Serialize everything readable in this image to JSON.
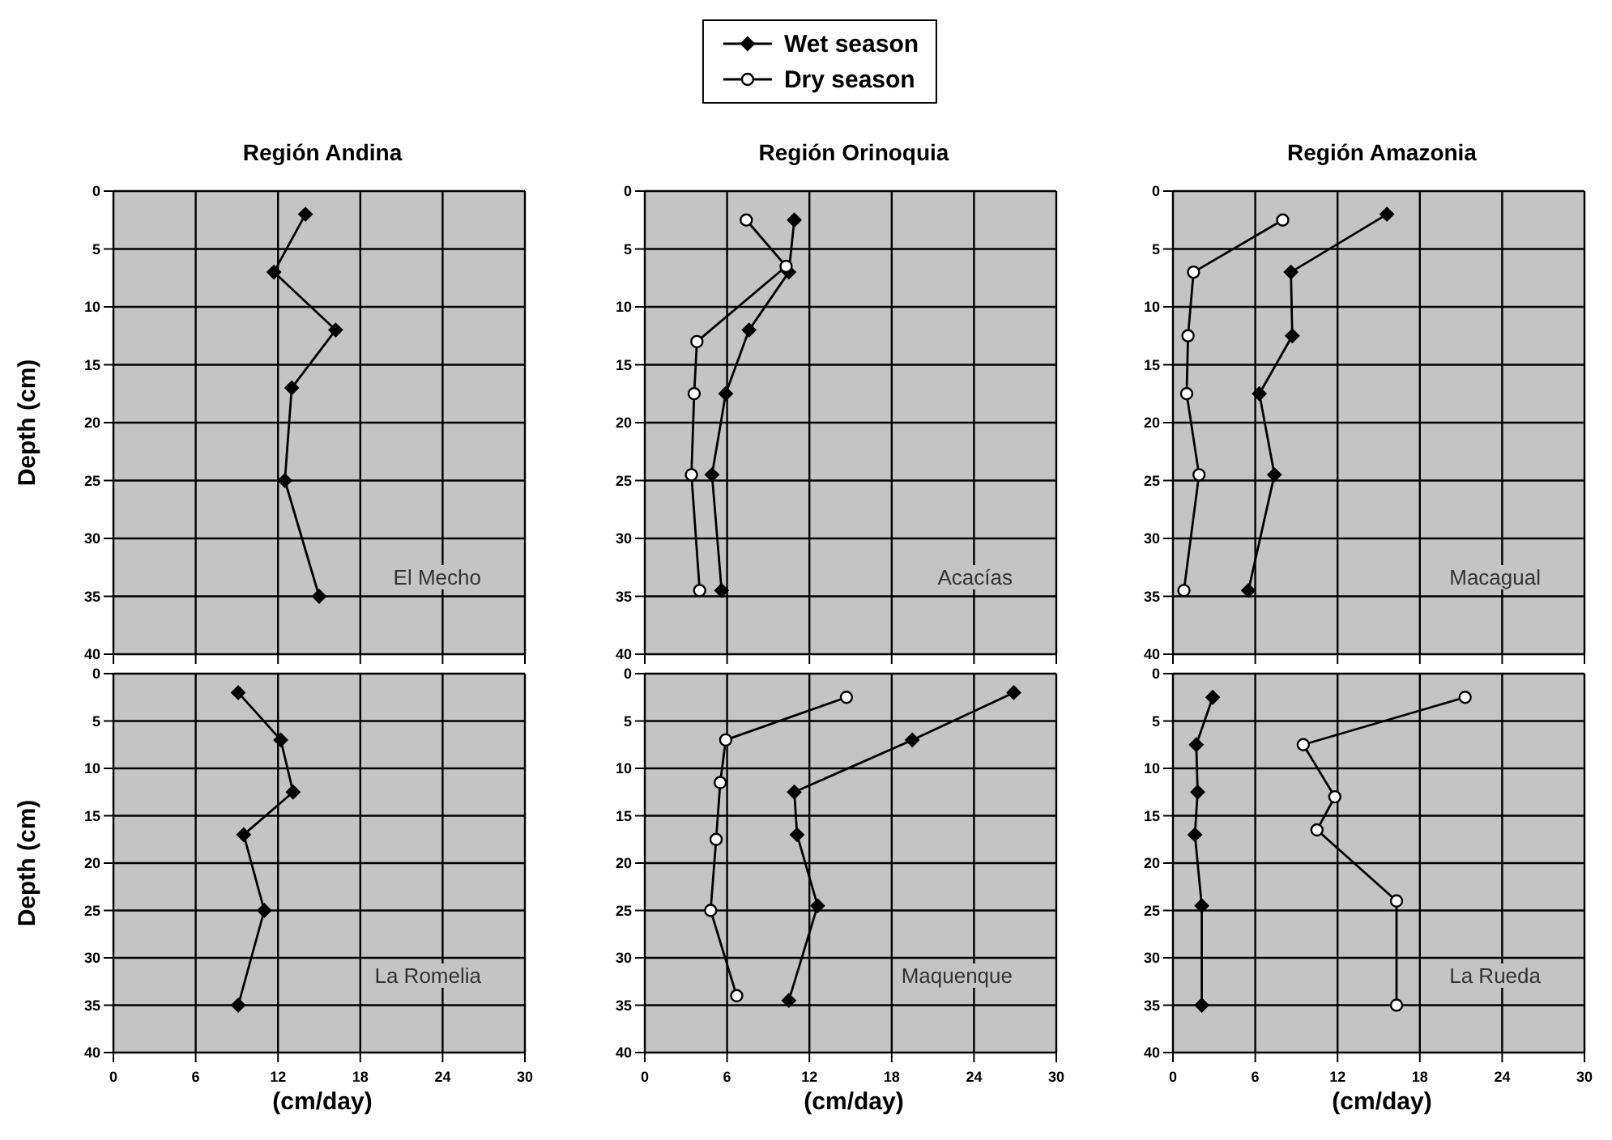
{
  "chart_data": [
    {
      "type": "line",
      "title": "Región Andina",
      "ylabel": "Depth (cm)",
      "annotations": [
        "El Mecho"
      ],
      "xlim": [
        0,
        30
      ],
      "xticks": [
        0,
        6,
        12,
        18,
        24,
        30
      ],
      "ylim": [
        40,
        0
      ],
      "yticks": [
        0,
        5,
        10,
        15,
        20,
        25,
        30,
        35,
        40
      ],
      "grid": true,
      "tick_labels": "y",
      "legend": false,
      "series": [
        {
          "color": "#000000",
          "marker": "diamond",
          "x": [
            14,
            11.7,
            16.2,
            13,
            12.5,
            15
          ],
          "values": [
            2,
            7,
            12,
            17,
            25,
            35
          ]
        }
      ]
    },
    {
      "type": "line",
      "title": "Región Orinoquia",
      "annotations": [
        "Acacías"
      ],
      "xlim": [
        0,
        30
      ],
      "xticks": [
        0,
        6,
        12,
        18,
        24,
        30
      ],
      "ylim": [
        40,
        0
      ],
      "yticks": [
        0,
        5,
        10,
        15,
        20,
        25,
        30,
        35,
        40
      ],
      "grid": true,
      "tick_labels": "y",
      "legend": "top",
      "series": [
        {
          "name": "Wet season",
          "color": "#000000",
          "marker": "diamond",
          "x": [
            10.9,
            10.5,
            7.6,
            5.9,
            4.9,
            5.6
          ],
          "values": [
            2.5,
            7,
            12,
            17.5,
            24.5,
            34.5
          ]
        },
        {
          "name": "Dry season",
          "color": "#000000",
          "marker": "circle",
          "x": [
            7.4,
            10.3,
            3.8,
            3.6,
            3.4,
            4
          ],
          "values": [
            2.5,
            6.5,
            13,
            17.5,
            24.5,
            34.5
          ]
        }
      ]
    },
    {
      "type": "line",
      "title": "Región Amazonia",
      "annotations": [
        "Macagual"
      ],
      "xlim": [
        0,
        30
      ],
      "xticks": [
        0,
        6,
        12,
        18,
        24,
        30
      ],
      "ylim": [
        40,
        0
      ],
      "yticks": [
        0,
        5,
        10,
        15,
        20,
        25,
        30,
        35,
        40
      ],
      "grid": true,
      "tick_labels": "y",
      "legend": false,
      "series": [
        {
          "color": "#000000",
          "marker": "diamond",
          "x": [
            15.6,
            8.6,
            8.7,
            6.3,
            7.4,
            5.5
          ],
          "values": [
            2,
            7,
            12.5,
            17.5,
            24.5,
            34.5
          ]
        },
        {
          "color": "#000000",
          "marker": "circle",
          "x": [
            8,
            1.5,
            1.1,
            1,
            1.9,
            0.8
          ],
          "values": [
            2.5,
            7,
            12.5,
            17.5,
            24.5,
            34.5
          ]
        }
      ]
    },
    {
      "type": "line",
      "ylabel": "Depth (cm)",
      "xlabel": "(cm/day)",
      "annotations": [
        "La Romelia"
      ],
      "xlim": [
        0,
        30
      ],
      "xticks": [
        0,
        6,
        12,
        18,
        24,
        30
      ],
      "ylim": [
        40,
        0
      ],
      "yticks": [
        0,
        5,
        10,
        15,
        20,
        25,
        30,
        35,
        40
      ],
      "grid": true,
      "legend": false,
      "series": [
        {
          "color": "#000000",
          "marker": "diamond",
          "x": [
            9.1,
            12.2,
            13.1,
            9.5,
            11,
            9.1
          ],
          "values": [
            2,
            7,
            12.5,
            17,
            25,
            35
          ]
        }
      ]
    },
    {
      "type": "line",
      "xlabel": "(cm/day)",
      "annotations": [
        "Maquenque"
      ],
      "xlim": [
        0,
        30
      ],
      "xticks": [
        0,
        6,
        12,
        18,
        24,
        30
      ],
      "ylim": [
        40,
        0
      ],
      "yticks": [
        0,
        5,
        10,
        15,
        20,
        25,
        30,
        35,
        40
      ],
      "grid": true,
      "legend": false,
      "series": [
        {
          "color": "#000000",
          "marker": "diamond",
          "x": [
            26.9,
            19.5,
            10.9,
            11.1,
            12.6,
            10.5
          ],
          "values": [
            2,
            7,
            12.5,
            17,
            24.5,
            34.5
          ]
        },
        {
          "color": "#000000",
          "marker": "circle",
          "x": [
            14.7,
            5.9,
            5.5,
            5.2,
            4.8,
            6.7
          ],
          "values": [
            2.5,
            7,
            11.5,
            17.5,
            25,
            34
          ]
        }
      ]
    },
    {
      "type": "line",
      "xlabel": "(cm/day)",
      "annotations": [
        "La Rueda"
      ],
      "xlim": [
        0,
        30
      ],
      "xticks": [
        0,
        6,
        12,
        18,
        24,
        30
      ],
      "ylim": [
        40,
        0
      ],
      "yticks": [
        0,
        5,
        10,
        15,
        20,
        25,
        30,
        35,
        40
      ],
      "grid": true,
      "legend": false,
      "series": [
        {
          "color": "#000000",
          "marker": "diamond",
          "x": [
            2.9,
            1.7,
            1.8,
            1.6,
            2.1,
            2.1
          ],
          "values": [
            2.5,
            7.5,
            12.5,
            17,
            24.5,
            35
          ]
        },
        {
          "color": "#000000",
          "marker": "circle",
          "x": [
            21.3,
            9.5,
            11.8,
            10.5,
            16.3,
            16.3
          ],
          "values": [
            2.5,
            7.5,
            13,
            16.5,
            24,
            35
          ]
        }
      ]
    }
  ]
}
